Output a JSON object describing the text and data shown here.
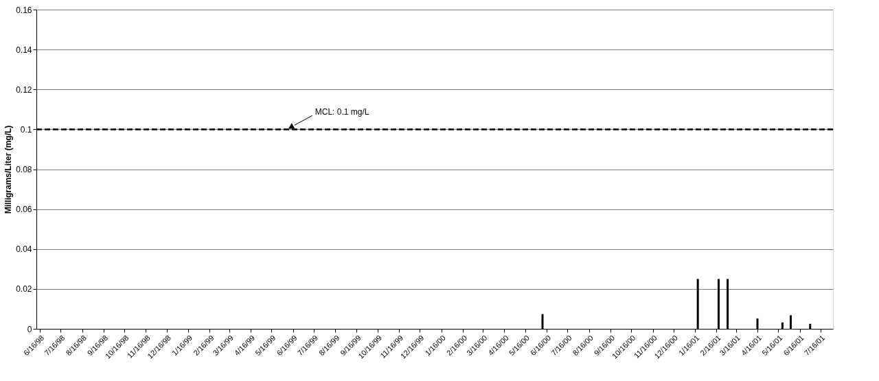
{
  "chart_data": {
    "type": "bar",
    "ylabel": "Milligrams/Liter (mg/L)",
    "x": [
      "2000-06-10",
      "2001-01-20",
      "2001-02-19",
      "2001-03-04",
      "2001-04-16",
      "2001-05-22",
      "2001-06-03",
      "2001-07-01"
    ],
    "values": [
      0.0074,
      0.025,
      0.025,
      0.025,
      0.0052,
      0.0032,
      0.0068,
      0.0025
    ],
    "color": "#000000",
    "xlim": [
      "1998-06-16",
      "2001-07-29"
    ],
    "xticks": [
      {
        "value": "1998-06-16",
        "label": "6/16/98"
      },
      {
        "value": "1998-07-16",
        "label": "7/16/98"
      },
      {
        "value": "1998-08-16",
        "label": "8/16/98"
      },
      {
        "value": "1998-09-16",
        "label": "9/16/98"
      },
      {
        "value": "1998-10-16",
        "label": "10/16/98"
      },
      {
        "value": "1998-11-16",
        "label": "11/16/98"
      },
      {
        "value": "1998-12-16",
        "label": "12/16/98"
      },
      {
        "value": "1999-01-16",
        "label": "1/16/99"
      },
      {
        "value": "1999-02-16",
        "label": "2/16/99"
      },
      {
        "value": "1999-03-16",
        "label": "3/16/99"
      },
      {
        "value": "1999-04-16",
        "label": "4/16/99"
      },
      {
        "value": "1999-05-16",
        "label": "5/16/99"
      },
      {
        "value": "1999-06-16",
        "label": "6/16/99"
      },
      {
        "value": "1999-07-16",
        "label": "7/16/99"
      },
      {
        "value": "1999-08-16",
        "label": "8/16/99"
      },
      {
        "value": "1999-09-16",
        "label": "9/16/99"
      },
      {
        "value": "1999-10-16",
        "label": "10/16/99"
      },
      {
        "value": "1999-11-16",
        "label": "11/16/99"
      },
      {
        "value": "1999-12-16",
        "label": "12/16/99"
      },
      {
        "value": "2000-01-16",
        "label": "1/16/00"
      },
      {
        "value": "2000-02-16",
        "label": "2/16/00"
      },
      {
        "value": "2000-03-16",
        "label": "3/16/00"
      },
      {
        "value": "2000-04-16",
        "label": "4/16/00"
      },
      {
        "value": "2000-05-16",
        "label": "5/16/00"
      },
      {
        "value": "2000-06-16",
        "label": "6/16/00"
      },
      {
        "value": "2000-07-16",
        "label": "7/16/00"
      },
      {
        "value": "2000-08-16",
        "label": "8/16/00"
      },
      {
        "value": "2000-09-16",
        "label": "9/16/00"
      },
      {
        "value": "2000-10-16",
        "label": "10/16/00"
      },
      {
        "value": "2000-11-16",
        "label": "11/16/00"
      },
      {
        "value": "2000-12-16",
        "label": "12/16/00"
      },
      {
        "value": "2001-01-16",
        "label": "1/16/01"
      },
      {
        "value": "2001-02-16",
        "label": "2/16/01"
      },
      {
        "value": "2001-03-16",
        "label": "3/16/01"
      },
      {
        "value": "2001-04-16",
        "label": "4/16/01"
      },
      {
        "value": "2001-05-16",
        "label": "5/16/01"
      },
      {
        "value": "2001-06-16",
        "label": "6/16/01"
      },
      {
        "value": "2001-07-16",
        "label": "7/16/01"
      }
    ],
    "ylim": [
      0,
      0.16
    ],
    "yticks": [
      0,
      0.02,
      0.04,
      0.06,
      0.08,
      0.1,
      0.12,
      0.14,
      0.16
    ],
    "grid": "y",
    "ref_lines": [
      {
        "axis": "y",
        "value": 0.1,
        "color": "#000000",
        "line_style": "dashed"
      }
    ],
    "annotations": [
      {
        "text": "MCL:  0.1 mg/L",
        "x": "1999-06-16",
        "y": 0.1
      }
    ]
  }
}
